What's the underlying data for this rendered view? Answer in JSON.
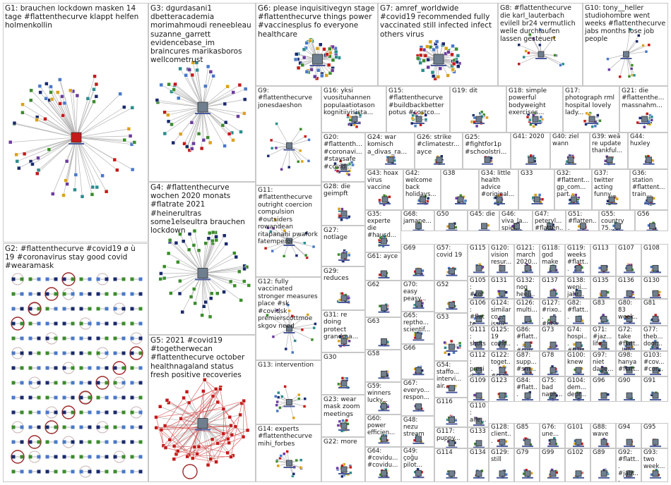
{
  "graph": {
    "colors": {
      "edge": "#b4b4b4",
      "node_dark": "#1a2a6c",
      "node_green": "#3c8c2c",
      "node_red": "#c41a1a",
      "node_blue": "#4a78c8",
      "node_ring": "#9c2a2a",
      "panel_border": "#c8c8c8"
    },
    "groups": [
      {
        "id": "G1",
        "label": "G1: brauchen lockdown masken 14 tage #flattenthecurve klappt helfen holmenkollin"
      },
      {
        "id": "G2",
        "label": "G2: #flattenthecurve #covid19 ø ù 19 #coronavirus stay good covid #wearamask"
      },
      {
        "id": "G3",
        "label": "G3: dgurdasani1 dbetteracademia morimahmoudi reneebleau suzanne_garrett evidencebase_im braincures marikasboros wellcometrust"
      },
      {
        "id": "G4",
        "label": "G4: #flattenthecurve wochen 2020 monats #flatrate 2021 #heinerultras some1elseultra brauchen lockdown"
      },
      {
        "id": "G5",
        "label": "G5: 2021 #covid19 #togetherwecan #flattenthecurve october healthnagaland status fresh positive recoveries"
      },
      {
        "id": "G6",
        "label": "G6: please inquisitivegyn stage #flattenthecurve things power #vaccinesplus fo everyone healthcare"
      },
      {
        "id": "G7",
        "label": "G7: amref_worldwide #covid19 recommended fully vaccinated still infected infect others virus"
      },
      {
        "id": "G8",
        "label": "G8: #flattenthecurve die karl_lauterbach evilell br24 vermutlich welle durchlaufen lassen gesteuert"
      },
      {
        "id": "G9",
        "label": "G9: #flattenthecurve jonesdaeshon"
      },
      {
        "id": "G10",
        "label": "G10: tony__heller studiohombre went weeks #flattenthecurve jabs months lose job people"
      },
      {
        "id": "G11",
        "label": "G11: #flattenthecurve outright coercion compulsion #outsiders rowandean ritapanahi pwafork fatemperor"
      },
      {
        "id": "G12",
        "label": "G12: fully vaccinated stronger measures place #sk #covidsk premierscottmoe skgov need"
      },
      {
        "id": "G13",
        "label": "G13: intervention"
      },
      {
        "id": "G14",
        "label": "G14: experts #flattenthecurve mihi_forbes"
      },
      {
        "id": "G15",
        "label": "G15: #flattenthecurve #buildbackbetter potus #costco..."
      },
      {
        "id": "G16",
        "label": "G16: yksi vuosituhannen populaatiotason kognitiivisista..."
      },
      {
        "id": "G17",
        "label": "G17: photograph rml hospital lovely lady..."
      },
      {
        "id": "G18",
        "label": "G18: simple powerful bodyweight exercises..."
      },
      {
        "id": "G19",
        "label": "G19: dit"
      },
      {
        "id": "G20",
        "label": "G20: #flattenth... #coronavi... #staysafe #covid..."
      },
      {
        "id": "G21",
        "label": "G21: die #flattenthe... massnahm..."
      },
      {
        "id": "G22",
        "label": "G22: more"
      },
      {
        "id": "G23",
        "label": "G23: wear mask zoom meetings"
      },
      {
        "id": "G24",
        "label": "G24: war komisch a_divas_ra..."
      },
      {
        "id": "G25",
        "label": "G25: #fightfor1p #schoolstri..."
      },
      {
        "id": "G26",
        "label": "G26: strike #climatestr... ayce"
      },
      {
        "id": "G27",
        "label": "G27: notlage"
      },
      {
        "id": "G28",
        "label": "G28: die geimpft"
      },
      {
        "id": "G29",
        "label": "G29: reduces"
      },
      {
        "id": "G30",
        "label": "G30"
      },
      {
        "id": "G31",
        "label": "G31: re doing protect grandma..."
      },
      {
        "id": "G32",
        "label": "G32: #flattent... gp_com... part..."
      },
      {
        "id": "G33",
        "label": "G33"
      },
      {
        "id": "G34",
        "label": "G34: little health advice #original..."
      },
      {
        "id": "G35",
        "label": "G35: experte die #hausd..."
      },
      {
        "id": "G36",
        "label": "G36: station #flattent... train..."
      },
      {
        "id": "G37",
        "label": "G37: twitter acting funny..."
      },
      {
        "id": "G38",
        "label": "G38"
      },
      {
        "id": "G39",
        "label": "G39: weâ re update thankful..."
      },
      {
        "id": "G40",
        "label": "G40: ziel wann"
      },
      {
        "id": "G41",
        "label": "G41: 2020"
      },
      {
        "id": "G42",
        "label": "G42: welcome back holidays..."
      },
      {
        "id": "G43",
        "label": "G43: hoax virus vaccine"
      },
      {
        "id": "G44",
        "label": "G44: huxley"
      },
      {
        "id": "G45",
        "label": "G45: die"
      },
      {
        "id": "G46",
        "label": "G46: viva_la... spiel..."
      },
      {
        "id": "G47",
        "label": "G47: petervl... #flatten..."
      },
      {
        "id": "G48",
        "label": "G48: nezu stream"
      },
      {
        "id": "G49",
        "label": "G49: çoğu pilot..."
      },
      {
        "id": "G50",
        "label": "G50"
      },
      {
        "id": "G51",
        "label": "G51: #flatten... ilomag..."
      },
      {
        "id": "G52",
        "label": "G52"
      },
      {
        "id": "G53",
        "label": "G53"
      },
      {
        "id": "G54",
        "label": "G54: staffo... intervi... air..."
      },
      {
        "id": "G55",
        "label": "G55: country 75..."
      },
      {
        "id": "G56",
        "label": "G56"
      },
      {
        "id": "G57",
        "label": "G57: covid 19"
      },
      {
        "id": "G58",
        "label": "G58"
      },
      {
        "id": "G59",
        "label": "G59: winners lucky..."
      },
      {
        "id": "G60",
        "label": "G60: power efficien..."
      },
      {
        "id": "G61",
        "label": "G61: ayce"
      },
      {
        "id": "G62",
        "label": "G62"
      },
      {
        "id": "G63",
        "label": "G63"
      },
      {
        "id": "G64",
        "label": "G64: #covidu... #covidu..."
      },
      {
        "id": "G65",
        "label": "G65: reptho... scientif..."
      },
      {
        "id": "G66",
        "label": "G66"
      },
      {
        "id": "G67",
        "label": "G67: everyo... respon..."
      },
      {
        "id": "G68",
        "label": "G68: jamane..."
      },
      {
        "id": "G69",
        "label": "G69"
      },
      {
        "id": "G70",
        "label": "G70: easy peasy..."
      },
      {
        "id": "G71",
        "label": "G71: #jaz... life..."
      },
      {
        "id": "G72",
        "label": "G72: take #flatt... life..."
      },
      {
        "id": "G73",
        "label": "G73"
      },
      {
        "id": "G74",
        "label": "G74: hospi... #flatt..."
      },
      {
        "id": "G75",
        "label": "G75: bad nauh..."
      },
      {
        "id": "G76",
        "label": "G76: une..."
      },
      {
        "id": "G77",
        "label": "G77: theb... door..."
      },
      {
        "id": "G78",
        "label": "G78"
      },
      {
        "id": "G79",
        "label": "G79"
      },
      {
        "id": "G80",
        "label": "G80: 83 week..."
      },
      {
        "id": "G81",
        "label": "G81"
      },
      {
        "id": "G82",
        "label": "G82: #flatt..."
      },
      {
        "id": "G83",
        "label": "G83"
      },
      {
        "id": "G84",
        "label": "G84: #flatt..."
      },
      {
        "id": "G85",
        "label": "G85"
      },
      {
        "id": "G86",
        "label": "G86: #flatt... #sup..."
      },
      {
        "id": "G87",
        "label": "G87: supp... #sm..."
      },
      {
        "id": "G88",
        "label": "G88: wave"
      },
      {
        "id": "G89",
        "label": "G89"
      },
      {
        "id": "G90",
        "label": "G90"
      },
      {
        "id": "G91",
        "label": "G91"
      },
      {
        "id": "G92",
        "label": "G92: #flatt... #jabt..."
      },
      {
        "id": "G93",
        "label": "G93: two week..."
      },
      {
        "id": "G94",
        "label": "G94"
      },
      {
        "id": "G95",
        "label": "G95"
      },
      {
        "id": "G96",
        "label": "G96"
      },
      {
        "id": "G97",
        "label": "G97: niet dage..."
      },
      {
        "id": "G98",
        "label": "G98: hanya #flatt..."
      },
      {
        "id": "G99",
        "label": "G99"
      },
      {
        "id": "G100",
        "label": "G100: knew"
      },
      {
        "id": "G101",
        "label": "G101"
      },
      {
        "id": "G102",
        "label": "G102"
      },
      {
        "id": "G103",
        "label": "G103: #cov... #cor..."
      },
      {
        "id": "G104",
        "label": "G104: dem... depr..."
      },
      {
        "id": "G105",
        "label": "G105: #coro..."
      },
      {
        "id": "G106",
        "label": "G106: #flatte..."
      },
      {
        "id": "G107",
        "label": "G107"
      },
      {
        "id": "G108",
        "label": "G108"
      },
      {
        "id": "G109",
        "label": "G109"
      },
      {
        "id": "G110",
        "label": "G110: alle..."
      },
      {
        "id": "G111",
        "label": "G111: shots..."
      },
      {
        "id": "G112",
        "label": "G112: presid..."
      },
      {
        "id": "G113",
        "label": "G113"
      },
      {
        "id": "G114",
        "label": "G114"
      },
      {
        "id": "G115",
        "label": "G115"
      },
      {
        "id": "G116",
        "label": "G116"
      },
      {
        "id": "G117",
        "label": "G117: puppy..."
      },
      {
        "id": "G118",
        "label": "G118: god make"
      },
      {
        "id": "G119",
        "label": "G119: weeks #flatt..."
      },
      {
        "id": "G120",
        "label": "G120: vision resur..."
      },
      {
        "id": "G121",
        "label": "G121: march 2020..."
      },
      {
        "id": "G122",
        "label": "G122: toget... #stay..."
      },
      {
        "id": "G123",
        "label": "G123"
      },
      {
        "id": "G124",
        "label": "G124: similarco... issue... multi..."
      },
      {
        "id": "G125",
        "label": "G125: 19 covid..."
      },
      {
        "id": "G126",
        "label": "G126: multi..."
      },
      {
        "id": "G127",
        "label": "G127: #rixo... #hea..."
      },
      {
        "id": "G128",
        "label": "G128: client..."
      },
      {
        "id": "G129",
        "label": "G129: still"
      },
      {
        "id": "G130",
        "label": "G130"
      },
      {
        "id": "G131",
        "label": "G131"
      },
      {
        "id": "G132",
        "label": "G132: nog heel..."
      },
      {
        "id": "G133",
        "label": "G133"
      },
      {
        "id": "G134",
        "label": "G134"
      },
      {
        "id": "G135",
        "label": "G135"
      },
      {
        "id": "G136",
        "label": "G136"
      },
      {
        "id": "G137",
        "label": "G137"
      },
      {
        "id": "G138",
        "label": "G138: weni... jahr..."
      }
    ]
  }
}
